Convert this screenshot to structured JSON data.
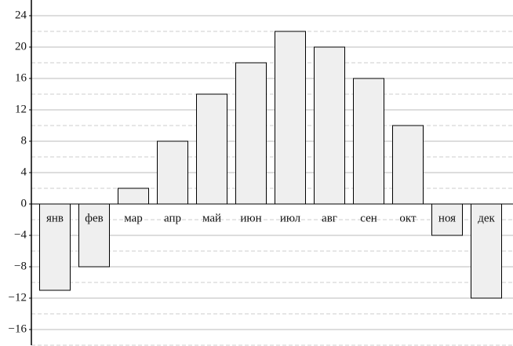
{
  "chart_data": {
    "type": "bar",
    "categories": [
      "янв",
      "фев",
      "мар",
      "апр",
      "май",
      "июн",
      "июл",
      "авг",
      "сен",
      "окт",
      "ноя",
      "дек"
    ],
    "values": [
      -11,
      -8,
      2,
      8,
      14,
      18,
      22,
      20,
      16,
      10,
      -4,
      -12
    ],
    "color": "#efefef",
    "ylim": [
      -18,
      26
    ],
    "yticks": [
      {
        "value": -16,
        "label": "−16"
      },
      {
        "value": -12,
        "label": "−12"
      },
      {
        "value": -8,
        "label": "−8"
      },
      {
        "value": -4,
        "label": "−4"
      },
      0,
      4,
      8,
      12,
      16,
      20,
      24
    ],
    "minor_yticks": [
      -18,
      -14,
      -10,
      -6,
      -2,
      2,
      6,
      10,
      14,
      18,
      22
    ],
    "grid": true
  }
}
